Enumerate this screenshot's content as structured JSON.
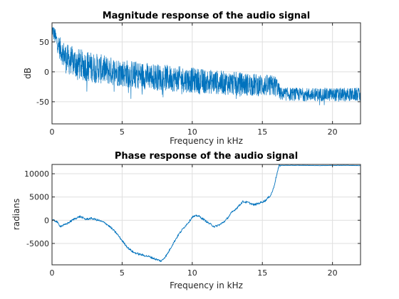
{
  "chart_data": [
    {
      "type": "line",
      "title": "Magnitude response of the audio signal",
      "xlabel": "Frequency in kHz",
      "ylabel": "dB",
      "xlim": [
        0,
        22
      ],
      "ylim": [
        -87,
        82
      ],
      "xticks": [
        0,
        5,
        10,
        15,
        20
      ],
      "yticks": [
        50,
        0,
        -50
      ],
      "grid": true,
      "color": "#0072bd",
      "series": [
        {
          "x": [
            0,
            0.5,
            1,
            2,
            4,
            6,
            8,
            10,
            12,
            14,
            16,
            16.1,
            16.3,
            18,
            20,
            22
          ],
          "y": [
            72,
            42,
            22,
            12,
            2,
            -5,
            -10,
            -14,
            -18,
            -21,
            -24,
            -27,
            -37,
            -38,
            -38,
            -38
          ],
          "spread": [
            10,
            18,
            25,
            26,
            24,
            23,
            22,
            21,
            20,
            19,
            18,
            13,
            11,
            11,
            11,
            11
          ]
        }
      ]
    },
    {
      "type": "line",
      "title": "Phase response of the audio signal",
      "xlabel": "Frequency in kHz",
      "ylabel": "radians",
      "xlim": [
        0,
        22
      ],
      "ylim": [
        -9600,
        12000
      ],
      "xticks": [
        0,
        5,
        10,
        15,
        20
      ],
      "yticks": [
        10000,
        5000,
        0,
        -5000
      ],
      "grid": true,
      "color": "#0072bd",
      "series": [
        {
          "x": [
            0,
            0.3,
            0.6,
            0.9,
            1.2,
            1.6,
            2.0,
            2.4,
            2.8,
            3.3,
            3.8,
            4.2,
            4.6,
            5.0,
            5.4,
            5.8,
            6.2,
            6.6,
            7.0,
            7.4,
            7.8,
            8.2,
            8.6,
            9.0,
            9.4,
            9.8,
            10.0,
            10.4,
            10.8,
            11.2,
            11.6,
            12.0,
            12.4,
            12.8,
            13.2,
            13.6,
            14.0,
            14.4,
            14.8,
            15.2,
            15.6,
            15.8,
            16.0,
            16.2,
            17,
            18,
            19,
            20,
            21,
            22
          ],
          "y": [
            0,
            -200,
            -1300,
            -1000,
            -500,
            300,
            800,
            200,
            400,
            0,
            -600,
            -1600,
            -2800,
            -4400,
            -5900,
            -6900,
            -7300,
            -7600,
            -7900,
            -8400,
            -8800,
            -7400,
            -5200,
            -3200,
            -1600,
            -200,
            700,
            1000,
            200,
            -700,
            -1400,
            -900,
            0,
            1600,
            2700,
            4000,
            3800,
            3300,
            3700,
            4200,
            5400,
            6900,
            9500,
            11800,
            11800,
            11800,
            11750,
            11800,
            11800,
            11750
          ]
        }
      ]
    }
  ]
}
